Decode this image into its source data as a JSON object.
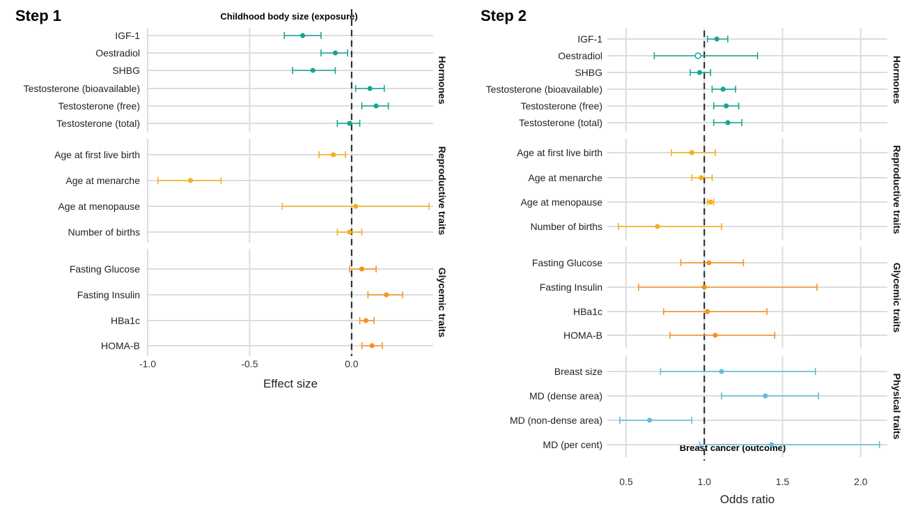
{
  "colors": {
    "hormones": "#1aa394",
    "reproductive": "#f2b01e",
    "glycemic": "#f59220",
    "physical": "#62bcd6",
    "grid": "#dcdcdc",
    "reference": "#222222"
  },
  "chart_data": [
    {
      "type": "forest",
      "panel_title": "Step 1",
      "title": "Childhood body size (exposure)",
      "xlabel": "Effect size",
      "xlim": [
        -1.0,
        0.4
      ],
      "xticks": [
        -1.0,
        -0.5,
        0.0
      ],
      "xtick_labels": [
        "-1.0",
        "-0.5",
        "0.0"
      ],
      "reference_line": 0.0,
      "groups": [
        {
          "name": "Hormones",
          "color_key": "hormones",
          "rows": [
            {
              "label": "IGF-1",
              "estimate": -0.24,
              "lower": -0.33,
              "upper": -0.15
            },
            {
              "label": "Oestradiol",
              "estimate": -0.08,
              "lower": -0.15,
              "upper": -0.02
            },
            {
              "label": "SHBG",
              "estimate": -0.19,
              "lower": -0.29,
              "upper": -0.08
            },
            {
              "label": "Testosterone (bioavailable)",
              "estimate": 0.09,
              "lower": 0.02,
              "upper": 0.16
            },
            {
              "label": "Testosterone (free)",
              "estimate": 0.12,
              "lower": 0.05,
              "upper": 0.18
            },
            {
              "label": "Testosterone (total)",
              "estimate": -0.01,
              "lower": -0.07,
              "upper": 0.04
            }
          ]
        },
        {
          "name": "Reproductive traits",
          "color_key": "reproductive",
          "rows": [
            {
              "label": "Age at first live birth",
              "estimate": -0.09,
              "lower": -0.16,
              "upper": -0.03
            },
            {
              "label": "Age at menarche",
              "estimate": -0.79,
              "lower": -0.95,
              "upper": -0.64
            },
            {
              "label": "Age at menopause",
              "estimate": 0.02,
              "lower": -0.34,
              "upper": 0.38
            },
            {
              "label": "Number of births",
              "estimate": -0.01,
              "lower": -0.07,
              "upper": 0.05
            }
          ]
        },
        {
          "name": "Glycemic traits",
          "color_key": "glycemic",
          "rows": [
            {
              "label": "Fasting Glucose",
              "estimate": 0.05,
              "lower": -0.01,
              "upper": 0.12
            },
            {
              "label": "Fasting Insulin",
              "estimate": 0.17,
              "lower": 0.08,
              "upper": 0.25
            },
            {
              "label": "HBa1c",
              "estimate": 0.07,
              "lower": 0.04,
              "upper": 0.11
            },
            {
              "label": "HOMA-B",
              "estimate": 0.1,
              "lower": 0.05,
              "upper": 0.15
            }
          ]
        }
      ]
    },
    {
      "type": "forest",
      "panel_title": "Step 2",
      "title": "Breast cancer (outcome)",
      "xlabel": "Odds ratio",
      "xlim": [
        0.38,
        2.17
      ],
      "xticks": [
        0.5,
        1.0,
        1.5,
        2.0
      ],
      "xtick_labels": [
        "0.5",
        "1.0",
        "1.5",
        "2.0"
      ],
      "reference_line": 1.0,
      "groups": [
        {
          "name": "Hormones",
          "color_key": "hormones",
          "rows": [
            {
              "label": "IGF-1",
              "estimate": 1.08,
              "lower": 1.02,
              "upper": 1.15
            },
            {
              "label": "Oestradiol",
              "estimate": 0.96,
              "lower": 0.68,
              "upper": 1.34,
              "open_marker": true
            },
            {
              "label": "SHBG",
              "estimate": 0.97,
              "lower": 0.91,
              "upper": 1.04
            },
            {
              "label": "Testosterone (bioavailable)",
              "estimate": 1.12,
              "lower": 1.05,
              "upper": 1.2
            },
            {
              "label": "Testosterone (free)",
              "estimate": 1.14,
              "lower": 1.06,
              "upper": 1.22
            },
            {
              "label": "Testosterone (total)",
              "estimate": 1.15,
              "lower": 1.06,
              "upper": 1.24
            }
          ]
        },
        {
          "name": "Reproductive traits",
          "color_key": "reproductive",
          "rows": [
            {
              "label": "Age at first live birth",
              "estimate": 0.92,
              "lower": 0.79,
              "upper": 1.07
            },
            {
              "label": "Age at menarche",
              "estimate": 0.98,
              "lower": 0.92,
              "upper": 1.05
            },
            {
              "label": "Age at menopause",
              "estimate": 1.04,
              "lower": 1.02,
              "upper": 1.06
            },
            {
              "label": "Number of births",
              "estimate": 0.7,
              "lower": 0.45,
              "upper": 1.11
            }
          ]
        },
        {
          "name": "Glycemic traits",
          "color_key": "glycemic",
          "rows": [
            {
              "label": "Fasting Glucose",
              "estimate": 1.03,
              "lower": 0.85,
              "upper": 1.25
            },
            {
              "label": "Fasting Insulin",
              "estimate": 1.0,
              "lower": 0.58,
              "upper": 1.72
            },
            {
              "label": "HBa1c",
              "estimate": 1.02,
              "lower": 0.74,
              "upper": 1.4
            },
            {
              "label": "HOMA-B",
              "estimate": 1.07,
              "lower": 0.78,
              "upper": 1.45
            }
          ]
        },
        {
          "name": "Physical traits",
          "color_key": "physical",
          "rows": [
            {
              "label": "Breast size",
              "estimate": 1.11,
              "lower": 0.72,
              "upper": 1.71
            },
            {
              "label": "MD (dense area)",
              "estimate": 1.39,
              "lower": 1.11,
              "upper": 1.73
            },
            {
              "label": "MD (non-dense area)",
              "estimate": 0.65,
              "lower": 0.46,
              "upper": 0.92
            },
            {
              "label": "MD (per cent)",
              "estimate": 1.43,
              "lower": 0.97,
              "upper": 2.12
            }
          ]
        }
      ]
    }
  ]
}
